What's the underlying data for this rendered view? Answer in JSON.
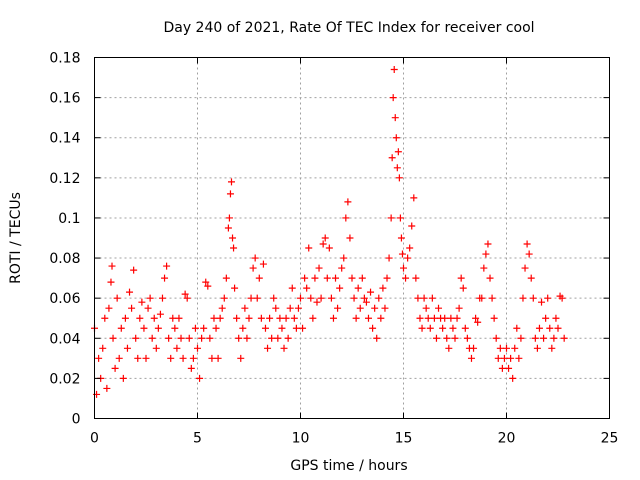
{
  "chart_data": {
    "type": "scatter",
    "title": "Day 240 of 2021, Rate Of TEC Index for receiver cool",
    "xlabel": "GPS time / hours",
    "ylabel": "ROTI / TECUs",
    "xlim": [
      0,
      25
    ],
    "ylim": [
      0,
      0.18
    ],
    "xticks": [
      "0",
      "5",
      "10",
      "15",
      "20",
      "25"
    ],
    "yticks": [
      "0",
      "0.02",
      "0.04",
      "0.06",
      "0.08",
      "0.1",
      "0.12",
      "0.14",
      "0.16",
      "0.18"
    ],
    "grid": true,
    "marker": "+",
    "marker_color": "#ff0000",
    "series": [
      {
        "points": [
          [
            0.0,
            0.045
          ],
          [
            0.1,
            0.012
          ],
          [
            0.2,
            0.03
          ],
          [
            0.3,
            0.02
          ],
          [
            0.4,
            0.035
          ],
          [
            0.5,
            0.05
          ],
          [
            0.6,
            0.015
          ],
          [
            0.7,
            0.055
          ],
          [
            0.8,
            0.068
          ],
          [
            0.85,
            0.076
          ],
          [
            0.9,
            0.04
          ],
          [
            1.0,
            0.025
          ],
          [
            1.1,
            0.06
          ],
          [
            1.2,
            0.03
          ],
          [
            1.3,
            0.045
          ],
          [
            1.4,
            0.02
          ],
          [
            1.5,
            0.05
          ],
          [
            1.6,
            0.035
          ],
          [
            1.7,
            0.063
          ],
          [
            1.8,
            0.055
          ],
          [
            1.9,
            0.074
          ],
          [
            2.0,
            0.04
          ],
          [
            2.1,
            0.03
          ],
          [
            2.2,
            0.05
          ],
          [
            2.3,
            0.058
          ],
          [
            2.4,
            0.045
          ],
          [
            2.5,
            0.03
          ],
          [
            2.6,
            0.055
          ],
          [
            2.7,
            0.06
          ],
          [
            2.8,
            0.04
          ],
          [
            2.9,
            0.05
          ],
          [
            3.0,
            0.035
          ],
          [
            3.1,
            0.045
          ],
          [
            3.2,
            0.052
          ],
          [
            3.3,
            0.06
          ],
          [
            3.4,
            0.07
          ],
          [
            3.5,
            0.076
          ],
          [
            3.6,
            0.04
          ],
          [
            3.7,
            0.03
          ],
          [
            3.8,
            0.05
          ],
          [
            3.9,
            0.045
          ],
          [
            4.0,
            0.035
          ],
          [
            4.1,
            0.05
          ],
          [
            4.2,
            0.04
          ],
          [
            4.3,
            0.03
          ],
          [
            4.4,
            0.062
          ],
          [
            4.5,
            0.06
          ],
          [
            4.6,
            0.04
          ],
          [
            4.7,
            0.025
          ],
          [
            4.8,
            0.03
          ],
          [
            4.9,
            0.045
          ],
          [
            5.0,
            0.035
          ],
          [
            5.1,
            0.02
          ],
          [
            5.2,
            0.04
          ],
          [
            5.3,
            0.045
          ],
          [
            5.4,
            0.068
          ],
          [
            5.5,
            0.066
          ],
          [
            5.6,
            0.04
          ],
          [
            5.7,
            0.03
          ],
          [
            5.8,
            0.05
          ],
          [
            5.9,
            0.045
          ],
          [
            6.0,
            0.03
          ],
          [
            6.1,
            0.05
          ],
          [
            6.2,
            0.055
          ],
          [
            6.3,
            0.06
          ],
          [
            6.4,
            0.07
          ],
          [
            6.5,
            0.095
          ],
          [
            6.55,
            0.1
          ],
          [
            6.6,
            0.112
          ],
          [
            6.65,
            0.118
          ],
          [
            6.7,
            0.09
          ],
          [
            6.75,
            0.085
          ],
          [
            6.8,
            0.065
          ],
          [
            6.9,
            0.05
          ],
          [
            7.0,
            0.04
          ],
          [
            7.1,
            0.03
          ],
          [
            7.2,
            0.045
          ],
          [
            7.3,
            0.055
          ],
          [
            7.4,
            0.04
          ],
          [
            7.5,
            0.05
          ],
          [
            7.6,
            0.06
          ],
          [
            7.7,
            0.075
          ],
          [
            7.8,
            0.08
          ],
          [
            7.9,
            0.06
          ],
          [
            8.0,
            0.07
          ],
          [
            8.1,
            0.05
          ],
          [
            8.2,
            0.077
          ],
          [
            8.3,
            0.045
          ],
          [
            8.4,
            0.035
          ],
          [
            8.5,
            0.05
          ],
          [
            8.6,
            0.04
          ],
          [
            8.7,
            0.06
          ],
          [
            8.8,
            0.055
          ],
          [
            8.9,
            0.04
          ],
          [
            9.0,
            0.05
          ],
          [
            9.1,
            0.045
          ],
          [
            9.2,
            0.035
          ],
          [
            9.3,
            0.05
          ],
          [
            9.4,
            0.04
          ],
          [
            9.5,
            0.055
          ],
          [
            9.6,
            0.065
          ],
          [
            9.7,
            0.05
          ],
          [
            9.8,
            0.045
          ],
          [
            9.9,
            0.055
          ],
          [
            10.0,
            0.06
          ],
          [
            10.1,
            0.045
          ],
          [
            10.2,
            0.07
          ],
          [
            10.3,
            0.065
          ],
          [
            10.4,
            0.085
          ],
          [
            10.5,
            0.06
          ],
          [
            10.6,
            0.05
          ],
          [
            10.7,
            0.07
          ],
          [
            10.8,
            0.058
          ],
          [
            10.9,
            0.075
          ],
          [
            11.0,
            0.06
          ],
          [
            11.1,
            0.087
          ],
          [
            11.2,
            0.09
          ],
          [
            11.3,
            0.07
          ],
          [
            11.4,
            0.085
          ],
          [
            11.5,
            0.06
          ],
          [
            11.6,
            0.05
          ],
          [
            11.7,
            0.07
          ],
          [
            11.8,
            0.055
          ],
          [
            11.9,
            0.065
          ],
          [
            12.0,
            0.075
          ],
          [
            12.1,
            0.08
          ],
          [
            12.2,
            0.1
          ],
          [
            12.3,
            0.108
          ],
          [
            12.4,
            0.09
          ],
          [
            12.5,
            0.07
          ],
          [
            12.6,
            0.06
          ],
          [
            12.7,
            0.05
          ],
          [
            12.8,
            0.065
          ],
          [
            12.9,
            0.055
          ],
          [
            13.0,
            0.07
          ],
          [
            13.1,
            0.06
          ],
          [
            13.2,
            0.058
          ],
          [
            13.3,
            0.05
          ],
          [
            13.4,
            0.063
          ],
          [
            13.5,
            0.045
          ],
          [
            13.6,
            0.055
          ],
          [
            13.7,
            0.04
          ],
          [
            13.8,
            0.06
          ],
          [
            13.9,
            0.05
          ],
          [
            14.0,
            0.065
          ],
          [
            14.1,
            0.055
          ],
          [
            14.2,
            0.07
          ],
          [
            14.3,
            0.08
          ],
          [
            14.4,
            0.1
          ],
          [
            14.45,
            0.13
          ],
          [
            14.5,
            0.16
          ],
          [
            14.55,
            0.174
          ],
          [
            14.6,
            0.15
          ],
          [
            14.65,
            0.14
          ],
          [
            14.7,
            0.125
          ],
          [
            14.75,
            0.133
          ],
          [
            14.8,
            0.12
          ],
          [
            14.85,
            0.1
          ],
          [
            14.9,
            0.09
          ],
          [
            14.95,
            0.082
          ],
          [
            15.0,
            0.075
          ],
          [
            15.1,
            0.07
          ],
          [
            15.2,
            0.08
          ],
          [
            15.3,
            0.085
          ],
          [
            15.4,
            0.096
          ],
          [
            15.5,
            0.11
          ],
          [
            15.6,
            0.07
          ],
          [
            15.7,
            0.06
          ],
          [
            15.8,
            0.05
          ],
          [
            15.9,
            0.045
          ],
          [
            16.0,
            0.06
          ],
          [
            16.1,
            0.055
          ],
          [
            16.2,
            0.05
          ],
          [
            16.3,
            0.045
          ],
          [
            16.4,
            0.06
          ],
          [
            16.5,
            0.05
          ],
          [
            16.6,
            0.04
          ],
          [
            16.7,
            0.055
          ],
          [
            16.8,
            0.05
          ],
          [
            16.9,
            0.045
          ],
          [
            17.0,
            0.05
          ],
          [
            17.1,
            0.04
          ],
          [
            17.2,
            0.035
          ],
          [
            17.3,
            0.05
          ],
          [
            17.4,
            0.045
          ],
          [
            17.5,
            0.04
          ],
          [
            17.6,
            0.05
          ],
          [
            17.7,
            0.055
          ],
          [
            17.8,
            0.07
          ],
          [
            17.9,
            0.065
          ],
          [
            18.0,
            0.045
          ],
          [
            18.1,
            0.04
          ],
          [
            18.2,
            0.035
          ],
          [
            18.3,
            0.03
          ],
          [
            18.4,
            0.035
          ],
          [
            18.5,
            0.05
          ],
          [
            18.6,
            0.048
          ],
          [
            18.7,
            0.06
          ],
          [
            18.8,
            0.06
          ],
          [
            18.9,
            0.075
          ],
          [
            19.0,
            0.082
          ],
          [
            19.1,
            0.087
          ],
          [
            19.2,
            0.07
          ],
          [
            19.3,
            0.06
          ],
          [
            19.4,
            0.05
          ],
          [
            19.5,
            0.04
          ],
          [
            19.6,
            0.03
          ],
          [
            19.7,
            0.035
          ],
          [
            19.8,
            0.025
          ],
          [
            19.9,
            0.03
          ],
          [
            20.0,
            0.035
          ],
          [
            20.1,
            0.025
          ],
          [
            20.2,
            0.03
          ],
          [
            20.3,
            0.02
          ],
          [
            20.4,
            0.035
          ],
          [
            20.5,
            0.045
          ],
          [
            20.6,
            0.03
          ],
          [
            20.7,
            0.04
          ],
          [
            20.8,
            0.06
          ],
          [
            20.9,
            0.075
          ],
          [
            21.0,
            0.087
          ],
          [
            21.1,
            0.082
          ],
          [
            21.2,
            0.07
          ],
          [
            21.3,
            0.06
          ],
          [
            21.4,
            0.04
          ],
          [
            21.5,
            0.035
          ],
          [
            21.6,
            0.045
          ],
          [
            21.7,
            0.058
          ],
          [
            21.8,
            0.04
          ],
          [
            21.9,
            0.05
          ],
          [
            22.0,
            0.06
          ],
          [
            22.1,
            0.045
          ],
          [
            22.2,
            0.035
          ],
          [
            22.3,
            0.04
          ],
          [
            22.4,
            0.05
          ],
          [
            22.5,
            0.045
          ],
          [
            22.6,
            0.061
          ],
          [
            22.7,
            0.06
          ],
          [
            22.8,
            0.04
          ]
        ]
      }
    ]
  }
}
